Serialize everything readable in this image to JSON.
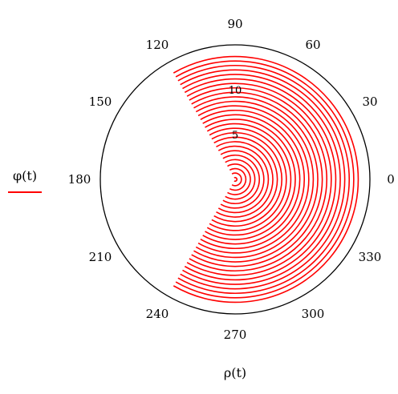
{
  "chart_data": {
    "type": "polar-line",
    "xlabel": "ρ(t)",
    "legend": {
      "placement": "left",
      "entries": [
        {
          "label": "φ(t)",
          "color": "#ff0000"
        }
      ]
    },
    "angle_ticks": [
      "0",
      "30",
      "60",
      "90",
      "120",
      "150",
      "180",
      "210",
      "240",
      "270",
      "300",
      "330"
    ],
    "radial_ticks": [
      "5",
      "10"
    ],
    "rlim": [
      0,
      15
    ],
    "grid": false,
    "series": [
      {
        "label": "φ(t)",
        "color": "#ff0000",
        "arc_angle_range_deg": [
          -120,
          120
        ],
        "radii": [
          0.2,
          0.7,
          1.2,
          1.7,
          2.2,
          2.7,
          3.2,
          3.7,
          4.2,
          4.7,
          5.2,
          5.7,
          6.2,
          6.7,
          7.2,
          7.7,
          8.2,
          8.7,
          9.2,
          9.7,
          10.2,
          10.7,
          11.2,
          11.7,
          12.2,
          12.7,
          13.2,
          13.7
        ]
      }
    ]
  }
}
